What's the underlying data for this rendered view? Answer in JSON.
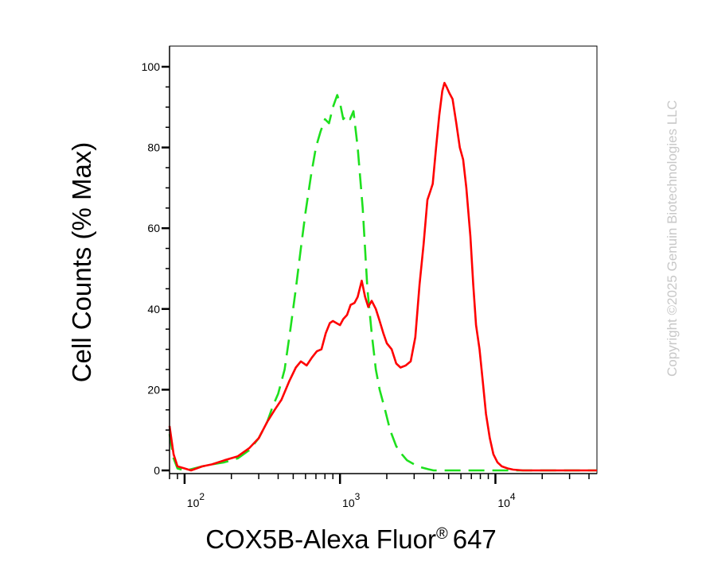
{
  "chart_data": {
    "type": "line",
    "title": "",
    "xlabel": "COX5B-Alexa Fluor",
    "xlabel_mark": "®",
    "xlabel_suffix": "647",
    "ylabel": "Cell Counts (% Max)",
    "xscale": "log",
    "xlim": [
      80,
      45000
    ],
    "ylim": [
      0,
      100
    ],
    "x_ticks": [
      {
        "value": 100,
        "base": "10",
        "exp": "2"
      },
      {
        "value": 1000,
        "base": "10",
        "exp": "3"
      },
      {
        "value": 10000,
        "base": "10",
        "exp": "4"
      }
    ],
    "y_ticks": [
      {
        "value": 0,
        "label": "0"
      },
      {
        "value": 20,
        "label": "20"
      },
      {
        "value": 40,
        "label": "40"
      },
      {
        "value": 60,
        "label": "60"
      },
      {
        "value": 80,
        "label": "80"
      },
      {
        "value": 100,
        "label": "100"
      }
    ],
    "grid": false,
    "series": [
      {
        "color": "#ff0000",
        "style": "solid",
        "points": [
          [
            80,
            11
          ],
          [
            85,
            4
          ],
          [
            90,
            1
          ],
          [
            100,
            0.5
          ],
          [
            110,
            0
          ],
          [
            130,
            1
          ],
          [
            150,
            1.5
          ],
          [
            180,
            2.5
          ],
          [
            220,
            3.5
          ],
          [
            260,
            5.5
          ],
          [
            300,
            8
          ],
          [
            340,
            12
          ],
          [
            380,
            15
          ],
          [
            420,
            17.5
          ],
          [
            470,
            22
          ],
          [
            520,
            25.5
          ],
          [
            560,
            27
          ],
          [
            610,
            26
          ],
          [
            660,
            28
          ],
          [
            710,
            29.5
          ],
          [
            760,
            30
          ],
          [
            810,
            34
          ],
          [
            860,
            36.5
          ],
          [
            900,
            37
          ],
          [
            950,
            36.5
          ],
          [
            1000,
            36
          ],
          [
            1050,
            37.5
          ],
          [
            1110,
            38.5
          ],
          [
            1170,
            41
          ],
          [
            1240,
            41.5
          ],
          [
            1300,
            43
          ],
          [
            1380,
            47
          ],
          [
            1450,
            43
          ],
          [
            1520,
            40.5
          ],
          [
            1600,
            42
          ],
          [
            1700,
            40
          ],
          [
            1800,
            37
          ],
          [
            1900,
            34
          ],
          [
            2000,
            31.5
          ],
          [
            2150,
            30
          ],
          [
            2300,
            26.5
          ],
          [
            2450,
            25.5
          ],
          [
            2650,
            26
          ],
          [
            2850,
            27
          ],
          [
            3050,
            33
          ],
          [
            3250,
            46
          ],
          [
            3450,
            56
          ],
          [
            3650,
            67
          ],
          [
            3800,
            69
          ],
          [
            3950,
            71
          ],
          [
            4150,
            80
          ],
          [
            4350,
            88
          ],
          [
            4550,
            94
          ],
          [
            4700,
            96
          ],
          [
            4850,
            95
          ],
          [
            5050,
            93.5
          ],
          [
            5300,
            92
          ],
          [
            5600,
            86
          ],
          [
            5900,
            80
          ],
          [
            6200,
            77
          ],
          [
            6500,
            70
          ],
          [
            6900,
            58
          ],
          [
            7200,
            46
          ],
          [
            7500,
            36
          ],
          [
            7900,
            30
          ],
          [
            8300,
            22
          ],
          [
            8700,
            14
          ],
          [
            9200,
            8
          ],
          [
            9700,
            4
          ],
          [
            10300,
            2
          ],
          [
            11000,
            1
          ],
          [
            12000,
            0.5
          ],
          [
            13000,
            0.2
          ],
          [
            15000,
            0
          ],
          [
            45000,
            0
          ]
        ]
      },
      {
        "color": "#1ee01e",
        "style": "dashed",
        "points": [
          [
            80,
            9
          ],
          [
            85,
            3
          ],
          [
            90,
            0.5
          ],
          [
            100,
            0
          ],
          [
            110,
            0.3
          ],
          [
            130,
            1
          ],
          [
            150,
            1.5
          ],
          [
            180,
            2
          ],
          [
            220,
            3
          ],
          [
            260,
            5
          ],
          [
            300,
            8
          ],
          [
            340,
            12
          ],
          [
            370,
            16
          ],
          [
            400,
            19
          ],
          [
            440,
            25
          ],
          [
            480,
            35
          ],
          [
            520,
            45
          ],
          [
            560,
            55
          ],
          [
            600,
            64
          ],
          [
            650,
            73
          ],
          [
            700,
            80
          ],
          [
            750,
            84
          ],
          [
            800,
            87
          ],
          [
            850,
            86
          ],
          [
            900,
            90
          ],
          [
            960,
            93
          ],
          [
            1000,
            91
          ],
          [
            1050,
            87
          ],
          [
            1100,
            88
          ],
          [
            1160,
            87
          ],
          [
            1220,
            89
          ],
          [
            1300,
            80
          ],
          [
            1400,
            65
          ],
          [
            1500,
            45
          ],
          [
            1600,
            34
          ],
          [
            1700,
            25
          ],
          [
            1800,
            20
          ],
          [
            1950,
            15
          ],
          [
            2100,
            10
          ],
          [
            2300,
            6
          ],
          [
            2500,
            4
          ],
          [
            2700,
            2.5
          ],
          [
            3000,
            1.5
          ],
          [
            3300,
            0.8
          ],
          [
            3700,
            0.3
          ],
          [
            4000,
            0
          ],
          [
            45000,
            0
          ]
        ]
      }
    ]
  },
  "watermark": "Copyright ©2025 Genuin Biotechnologies LLC"
}
